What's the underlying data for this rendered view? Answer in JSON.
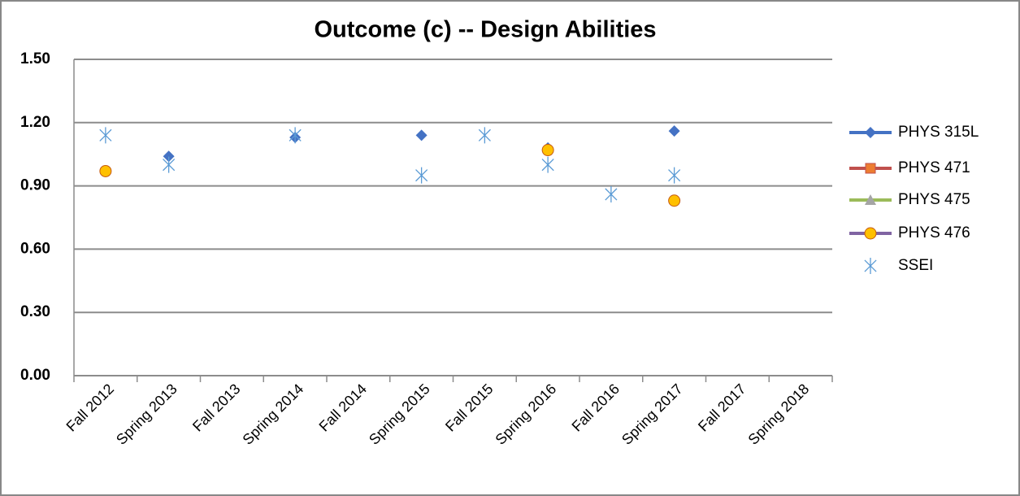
{
  "chart_data": {
    "type": "scatter",
    "title": "Outcome (c) -- Design Abilities",
    "categories": [
      "Fall 2012",
      "Spring 2013",
      "Fall 2013",
      "Spring 2014",
      "Fall 2014",
      "Spring 2015",
      "Fall 2015",
      "Spring 2016",
      "Fall 2016",
      "Spring 2017",
      "Fall 2017",
      "Spring 2018"
    ],
    "series": [
      {
        "name": "PHYS 315L",
        "marker": "diamond",
        "color": "#4472c4",
        "line_color": "#4472c4",
        "values": [
          null,
          1.04,
          null,
          1.13,
          null,
          1.14,
          null,
          1.08,
          null,
          1.16,
          null,
          null
        ]
      },
      {
        "name": "PHYS 471",
        "marker": "square",
        "color": "#ed7d31",
        "line_color": "#c0504d",
        "values": [
          null,
          null,
          null,
          null,
          null,
          null,
          null,
          null,
          null,
          null,
          null,
          null
        ]
      },
      {
        "name": "PHYS 475",
        "marker": "triangle",
        "color": "#a5a5a5",
        "line_color": "#9bbb59",
        "values": [
          null,
          null,
          null,
          null,
          null,
          null,
          null,
          null,
          null,
          null,
          null,
          null
        ]
      },
      {
        "name": "PHYS 476",
        "marker": "circle",
        "color": "#ffc000",
        "line_color": "#8064a2",
        "values": [
          0.97,
          null,
          null,
          null,
          null,
          null,
          null,
          1.07,
          null,
          0.83,
          null,
          null
        ]
      },
      {
        "name": "SSEI",
        "marker": "asterisk",
        "color": "#5b9bd5",
        "line_color": null,
        "values": [
          1.14,
          1.0,
          null,
          1.14,
          null,
          0.95,
          1.14,
          1.0,
          0.86,
          0.95,
          null,
          null
        ]
      }
    ],
    "ylim": [
      0,
      1.5
    ],
    "yticks": [
      {
        "value": 0,
        "label": "0.00"
      },
      {
        "value": 0.3,
        "label": "0.30"
      },
      {
        "value": 0.6,
        "label": "0.60"
      },
      {
        "value": 0.9,
        "label": "0.90"
      },
      {
        "value": 1.2,
        "label": "1.20"
      },
      {
        "value": 1.5,
        "label": "1.50"
      }
    ],
    "grid": true,
    "legend": "right"
  }
}
